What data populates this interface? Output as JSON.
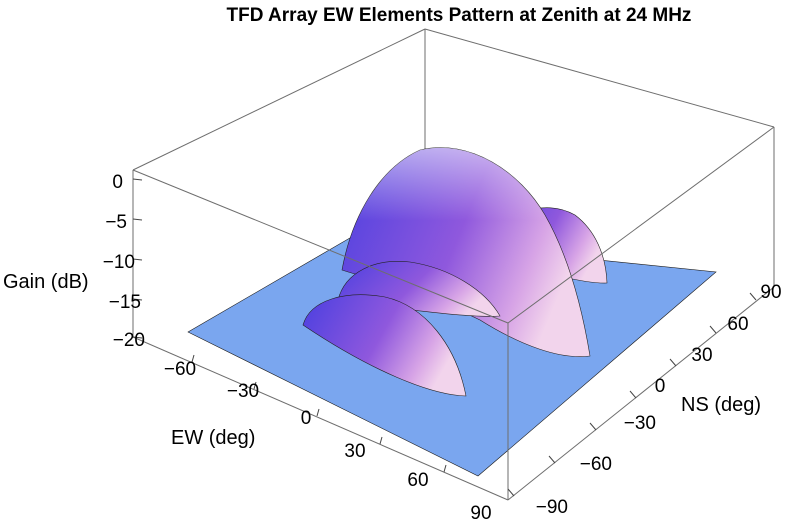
{
  "chart_data": {
    "type": "surface3d",
    "title": "TFD Array EW Elements Pattern at Zenith at 24 MHz",
    "xlabel": "EW (deg)",
    "ylabel": "NS (deg)",
    "zlabel": "Gain (dB)",
    "xlim": [
      -90,
      90
    ],
    "ylim": [
      -90,
      90
    ],
    "zlim": [
      -20,
      0
    ],
    "xticks": [
      "−60",
      "−30",
      "0",
      "30",
      "60",
      "90"
    ],
    "yticks": [
      "−90",
      "−60",
      "−30",
      "0",
      "30",
      "60",
      "90"
    ],
    "zticks": [
      "0",
      "−5",
      "−10",
      "−15",
      "−20"
    ],
    "floor_level_db": -20,
    "lobes": [
      {
        "ew_center": 0,
        "ns_center": 15,
        "peak_db": 0
      },
      {
        "ew_center": 0,
        "ns_center": 63,
        "peak_db": -11
      },
      {
        "ew_center": -15,
        "ns_center": -18,
        "peak_db": -11
      },
      {
        "ew_center": 15,
        "ns_center": -43,
        "peak_db": -13
      }
    ],
    "colors": {
      "floor": "#7aa6ef",
      "lobe_dark": "#4a3fe0",
      "lobe_mid": "#8f58dd",
      "lobe_light": "#f2d4ec"
    }
  }
}
